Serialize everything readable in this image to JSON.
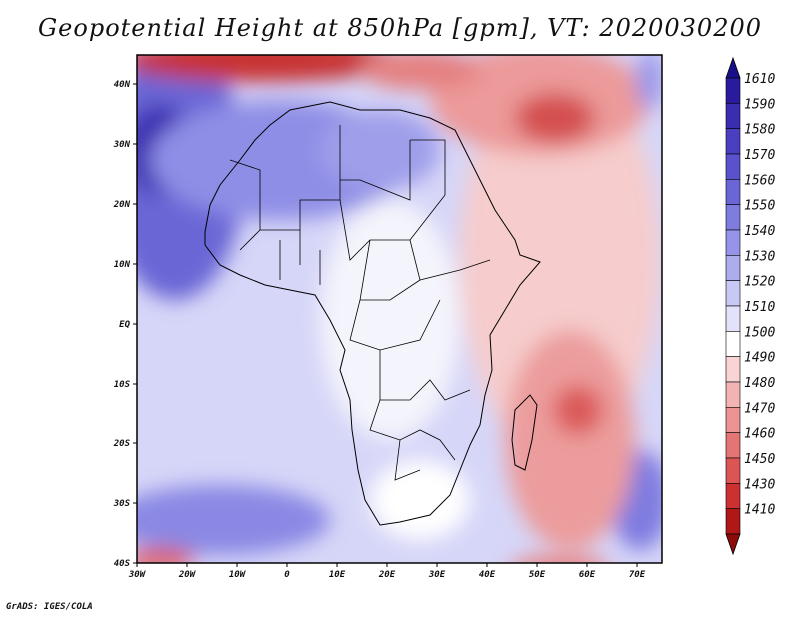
{
  "title": "Geopotential Height at 850hPa [gpm], VT: 2020030200",
  "credit": "GrADS: IGES/COLA",
  "axes": {
    "lat_labels": [
      "40N",
      "30N",
      "20N",
      "10N",
      "EQ",
      "10S",
      "20S",
      "30S",
      "40S"
    ],
    "lon_labels": [
      "30W",
      "20W",
      "10W",
      "0",
      "10E",
      "20E",
      "30E",
      "40E",
      "50E",
      "60E",
      "70E"
    ]
  },
  "colorbar": {
    "levels": [
      "1610",
      "1590",
      "1580",
      "1570",
      "1560",
      "1550",
      "1540",
      "1530",
      "1520",
      "1510",
      "1500",
      "1490",
      "1480",
      "1470",
      "1460",
      "1450",
      "1430",
      "1410"
    ],
    "colors": [
      "#2a1a9e",
      "#3a2db0",
      "#4a3fc0",
      "#5a52cc",
      "#6b66d6",
      "#7f7ce0",
      "#9594e8",
      "#adadee",
      "#c8c8f4",
      "#e2e2fa",
      "#ffffff",
      "#f9d4d4",
      "#f2b3b3",
      "#ec9494",
      "#e57575",
      "#dc5555",
      "#cc3030",
      "#b01818"
    ],
    "top_color": "#1a0f8a",
    "bottom_color": "#8c0c0c"
  },
  "legend_label": "gpm"
}
